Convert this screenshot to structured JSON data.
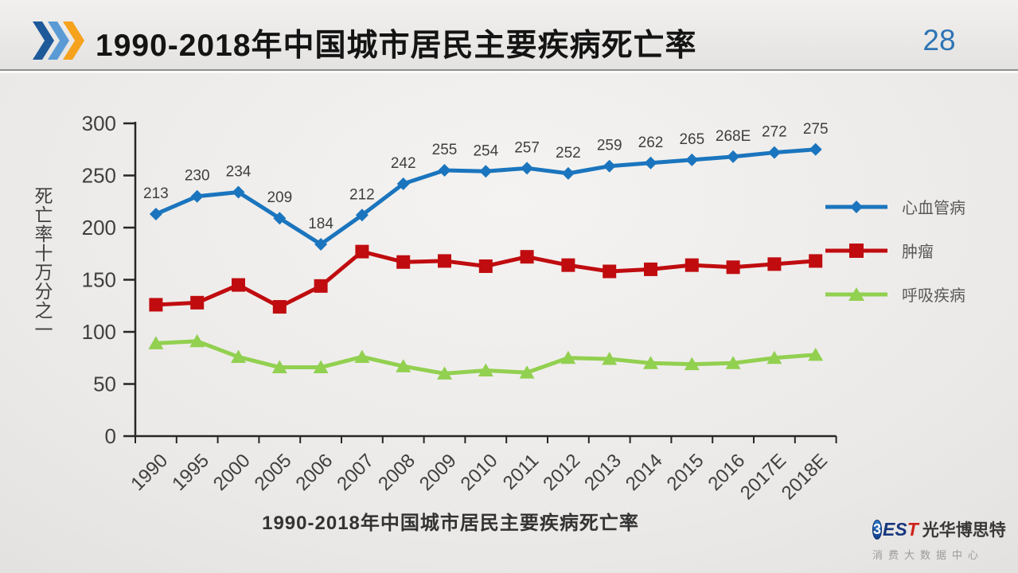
{
  "header": {
    "title": "1990-2018年中国城市居民主要疾病死亡率",
    "page_number": "28"
  },
  "chart_data": {
    "type": "line",
    "title": "1990-2018年中国城市居民主要疾病死亡率",
    "xlabel": "",
    "ylabel": "死亡率十万分之一",
    "ylim": [
      0,
      300
    ],
    "yticks": [
      0,
      50,
      100,
      150,
      200,
      250,
      300
    ],
    "grid": false,
    "legend_position": "right",
    "categories": [
      "1990",
      "1995",
      "2000",
      "2005",
      "2006",
      "2007",
      "2008",
      "2009",
      "2010",
      "2011",
      "2012",
      "2013",
      "2014",
      "2015",
      "2016",
      "2017E",
      "2018E"
    ],
    "series": [
      {
        "name": "心血管病",
        "color": "#1b75be",
        "marker": "diamond",
        "values": [
          213,
          230,
          234,
          209,
          184,
          212,
          242,
          255,
          254,
          257,
          252,
          259,
          262,
          265,
          268,
          272,
          275
        ],
        "labels": [
          "213",
          "230",
          "234",
          "209",
          "184",
          "212",
          "242",
          "255",
          "254",
          "257",
          "252",
          "259",
          "262",
          "265",
          "268E",
          "272",
          "275"
        ]
      },
      {
        "name": "肿瘤",
        "color": "#c00c0f",
        "marker": "square",
        "values": [
          126,
          128,
          145,
          124,
          144,
          177,
          167,
          168,
          163,
          172,
          164,
          158,
          160,
          164,
          162,
          165,
          168
        ]
      },
      {
        "name": "呼吸疾病",
        "color": "#92d050",
        "marker": "triangle",
        "values": [
          89,
          91,
          76,
          66,
          66,
          76,
          67,
          60,
          63,
          61,
          75,
          74,
          70,
          69,
          70,
          75,
          78
        ]
      }
    ]
  },
  "caption": "1990-2018年中国城市居民主要疾病死亡率",
  "logo": {
    "emblem": "3",
    "brand_es": "ES",
    "brand_t": "T",
    "brand_cn": "光华博思特",
    "subtitle": "消费大数据中心"
  }
}
